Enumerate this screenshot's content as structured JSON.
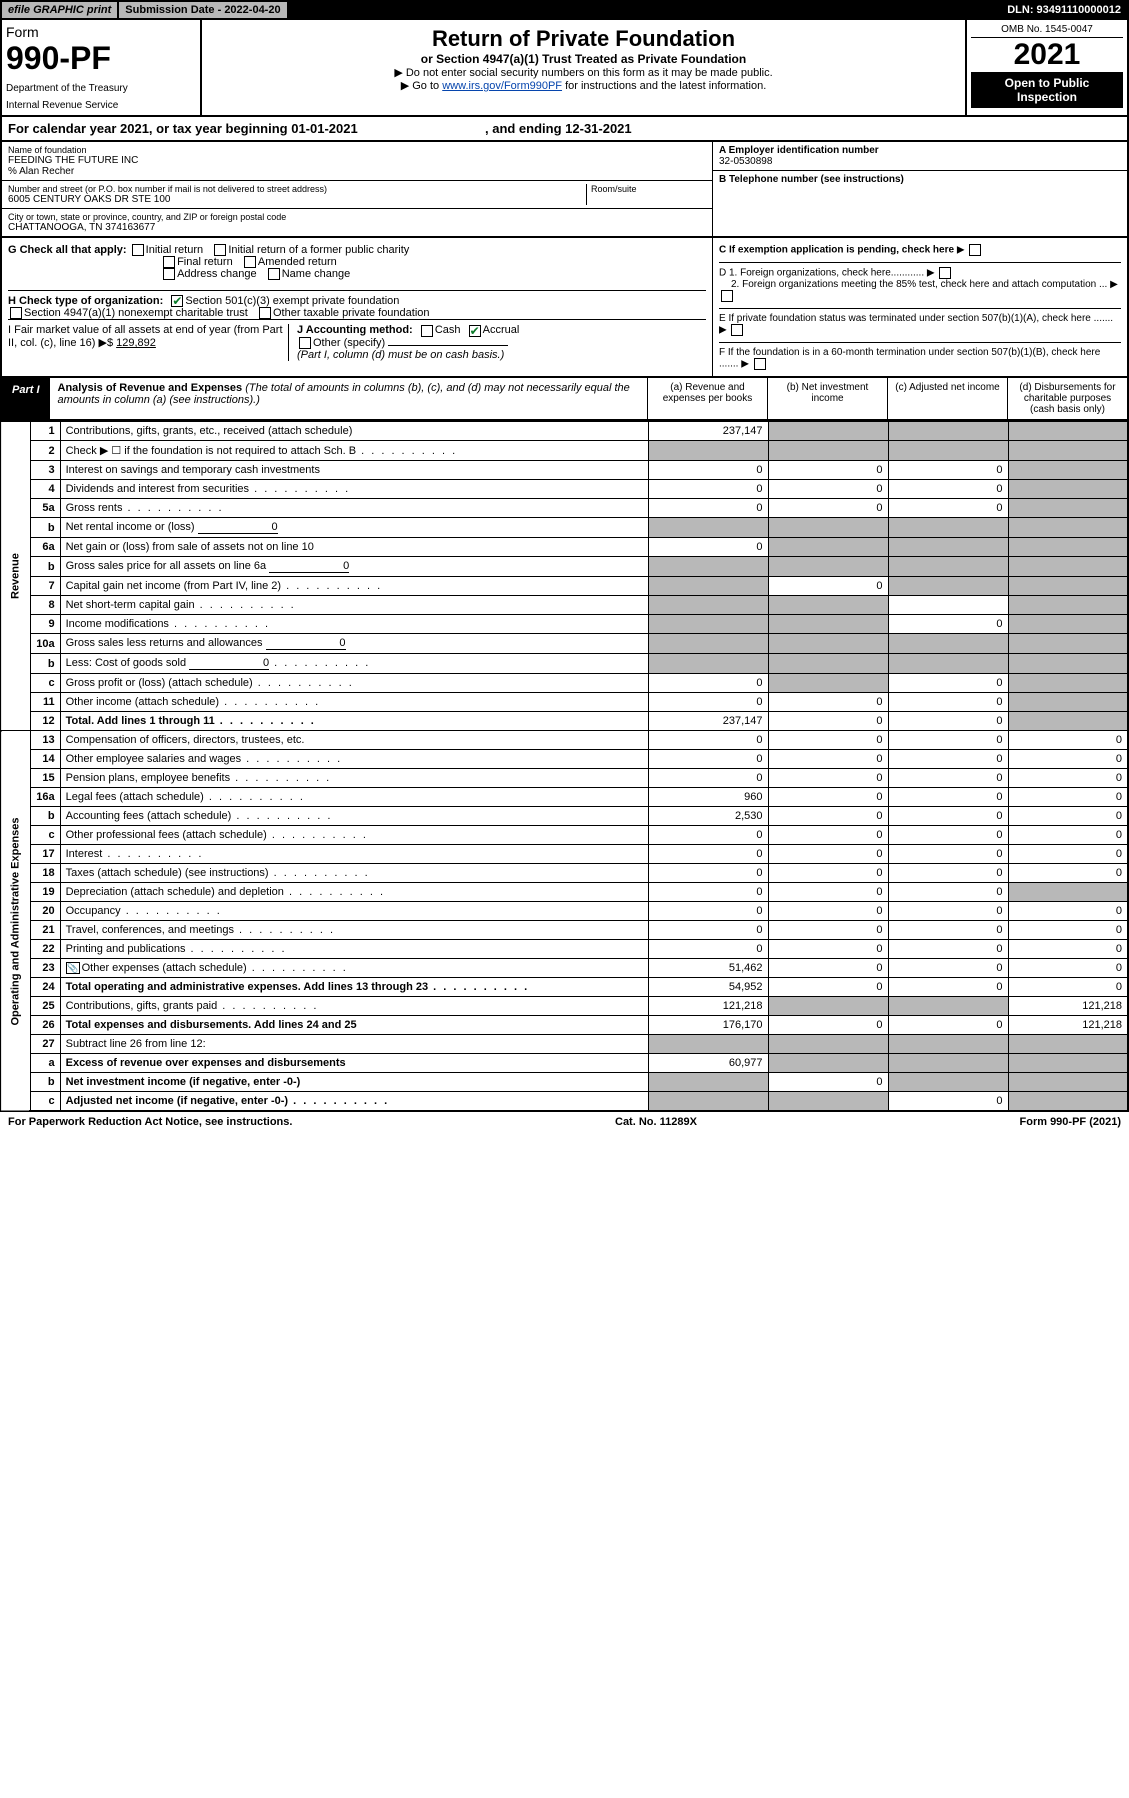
{
  "top": {
    "efile": "efile GRAPHIC print",
    "submission": "Submission Date - 2022-04-20",
    "dln": "DLN: 93491110000012"
  },
  "header": {
    "form_label": "Form",
    "form_no": "990-PF",
    "dept": "Department of the Treasury",
    "irs": "Internal Revenue Service",
    "title": "Return of Private Foundation",
    "subtitle": "or Section 4947(a)(1) Trust Treated as Private Foundation",
    "note1": "▶ Do not enter social security numbers on this form as it may be made public.",
    "note2_pre": "▶ Go to ",
    "note2_link": "www.irs.gov/Form990PF",
    "note2_post": " for instructions and the latest information.",
    "omb": "OMB No. 1545-0047",
    "year": "2021",
    "open": "Open to Public Inspection"
  },
  "cal_year": {
    "pre": "For calendar year 2021, or tax year beginning 01-01-2021",
    "mid": ", and ending 12-31-2021"
  },
  "info": {
    "name_label": "Name of foundation",
    "name": "FEEDING THE FUTURE INC",
    "care_of": "% Alan Recher",
    "addr_label": "Number and street (or P.O. box number if mail is not delivered to street address)",
    "addr": "6005 CENTURY OAKS DR STE 100",
    "room_label": "Room/suite",
    "city_label": "City or town, state or province, country, and ZIP or foreign postal code",
    "city": "CHATTANOOGA, TN  374163677",
    "a_label": "A Employer identification number",
    "a_val": "32-0530898",
    "b_label": "B Telephone number (see instructions)",
    "c_label": "C If exemption application is pending, check here",
    "d1": "D 1. Foreign organizations, check here............",
    "d2": "2. Foreign organizations meeting the 85% test, check here and attach computation ...",
    "e": "E  If private foundation status was terminated under section 507(b)(1)(A), check here .......",
    "f": "F  If the foundation is in a 60-month termination under section 507(b)(1)(B), check here .......",
    "g_label": "G Check all that apply:",
    "g_opts": [
      "Initial return",
      "Initial return of a former public charity",
      "Final return",
      "Amended return",
      "Address change",
      "Name change"
    ],
    "h_label": "H Check type of organization:",
    "h1": "Section 501(c)(3) exempt private foundation",
    "h2": "Section 4947(a)(1) nonexempt charitable trust",
    "h3": "Other taxable private foundation",
    "i_label": "I Fair market value of all assets at end of year (from Part II, col. (c), line 16)",
    "i_val": "129,892",
    "j_label": "J Accounting method:",
    "j_cash": "Cash",
    "j_accrual": "Accrual",
    "j_other": "Other (specify)",
    "j_note": "(Part I, column (d) must be on cash basis.)"
  },
  "part1": {
    "label": "Part I",
    "title": "Analysis of Revenue and Expenses",
    "note": "(The total of amounts in columns (b), (c), and (d) may not necessarily equal the amounts in column (a) (see instructions).)",
    "col_a": "(a) Revenue and expenses per books",
    "col_b": "(b) Net investment income",
    "col_c": "(c) Adjusted net income",
    "col_d": "(d) Disbursements for charitable purposes (cash basis only)"
  },
  "sections": {
    "revenue": "Revenue",
    "expenses": "Operating and Administrative Expenses"
  },
  "rows": [
    {
      "n": "1",
      "d": "Contributions, gifts, grants, etc., received (attach schedule)",
      "a": "237,147",
      "b": "shaded",
      "c": "shaded",
      "e": "shaded"
    },
    {
      "n": "2",
      "d": "Check ▶ ☐ if the foundation is not required to attach Sch. B",
      "dots": true,
      "a": "shaded",
      "b": "shaded",
      "c": "shaded",
      "e": "shaded"
    },
    {
      "n": "3",
      "d": "Interest on savings and temporary cash investments",
      "a": "0",
      "b": "0",
      "c": "0",
      "e": "shaded"
    },
    {
      "n": "4",
      "d": "Dividends and interest from securities",
      "dots": true,
      "a": "0",
      "b": "0",
      "c": "0",
      "e": "shaded"
    },
    {
      "n": "5a",
      "d": "Gross rents",
      "dots": true,
      "a": "0",
      "b": "0",
      "c": "0",
      "e": "shaded"
    },
    {
      "n": "b",
      "d": "Net rental income or (loss)",
      "inline": "0",
      "a": "shaded",
      "b": "shaded",
      "c": "shaded",
      "e": "shaded"
    },
    {
      "n": "6a",
      "d": "Net gain or (loss) from sale of assets not on line 10",
      "a": "0",
      "b": "shaded",
      "c": "shaded",
      "e": "shaded"
    },
    {
      "n": "b",
      "d": "Gross sales price for all assets on line 6a",
      "inline": "0",
      "a": "shaded",
      "b": "shaded",
      "c": "shaded",
      "e": "shaded"
    },
    {
      "n": "7",
      "d": "Capital gain net income (from Part IV, line 2)",
      "dots": true,
      "a": "shaded",
      "b": "0",
      "c": "shaded",
      "e": "shaded"
    },
    {
      "n": "8",
      "d": "Net short-term capital gain",
      "dots": true,
      "a": "shaded",
      "b": "shaded",
      "c": "",
      "e": "shaded"
    },
    {
      "n": "9",
      "d": "Income modifications",
      "dots": true,
      "a": "shaded",
      "b": "shaded",
      "c": "0",
      "e": "shaded"
    },
    {
      "n": "10a",
      "d": "Gross sales less returns and allowances",
      "inline": "0",
      "a": "shaded",
      "b": "shaded",
      "c": "shaded",
      "e": "shaded"
    },
    {
      "n": "b",
      "d": "Less: Cost of goods sold",
      "dots": true,
      "inline": "0",
      "a": "shaded",
      "b": "shaded",
      "c": "shaded",
      "e": "shaded"
    },
    {
      "n": "c",
      "d": "Gross profit or (loss) (attach schedule)",
      "dots": true,
      "a": "0",
      "b": "shaded",
      "c": "0",
      "e": "shaded"
    },
    {
      "n": "11",
      "d": "Other income (attach schedule)",
      "dots": true,
      "a": "0",
      "b": "0",
      "c": "0",
      "e": "shaded"
    },
    {
      "n": "12",
      "d": "Total. Add lines 1 through 11",
      "dots": true,
      "bold": true,
      "a": "237,147",
      "b": "0",
      "c": "0",
      "e": "shaded"
    },
    {
      "n": "13",
      "d": "Compensation of officers, directors, trustees, etc.",
      "a": "0",
      "b": "0",
      "c": "0",
      "e": "0",
      "sec": "exp"
    },
    {
      "n": "14",
      "d": "Other employee salaries and wages",
      "dots": true,
      "a": "0",
      "b": "0",
      "c": "0",
      "e": "0"
    },
    {
      "n": "15",
      "d": "Pension plans, employee benefits",
      "dots": true,
      "a": "0",
      "b": "0",
      "c": "0",
      "e": "0"
    },
    {
      "n": "16a",
      "d": "Legal fees (attach schedule)",
      "dots": true,
      "a": "960",
      "b": "0",
      "c": "0",
      "e": "0"
    },
    {
      "n": "b",
      "d": "Accounting fees (attach schedule)",
      "dots": true,
      "a": "2,530",
      "b": "0",
      "c": "0",
      "e": "0"
    },
    {
      "n": "c",
      "d": "Other professional fees (attach schedule)",
      "dots": true,
      "a": "0",
      "b": "0",
      "c": "0",
      "e": "0"
    },
    {
      "n": "17",
      "d": "Interest",
      "dots": true,
      "a": "0",
      "b": "0",
      "c": "0",
      "e": "0"
    },
    {
      "n": "18",
      "d": "Taxes (attach schedule) (see instructions)",
      "dots": true,
      "a": "0",
      "b": "0",
      "c": "0",
      "e": "0"
    },
    {
      "n": "19",
      "d": "Depreciation (attach schedule) and depletion",
      "dots": true,
      "a": "0",
      "b": "0",
      "c": "0",
      "e": "shaded"
    },
    {
      "n": "20",
      "d": "Occupancy",
      "dots": true,
      "a": "0",
      "b": "0",
      "c": "0",
      "e": "0"
    },
    {
      "n": "21",
      "d": "Travel, conferences, and meetings",
      "dots": true,
      "a": "0",
      "b": "0",
      "c": "0",
      "e": "0"
    },
    {
      "n": "22",
      "d": "Printing and publications",
      "dots": true,
      "a": "0",
      "b": "0",
      "c": "0",
      "e": "0"
    },
    {
      "n": "23",
      "d": "Other expenses (attach schedule)",
      "dots": true,
      "icon": true,
      "a": "51,462",
      "b": "0",
      "c": "0",
      "e": "0"
    },
    {
      "n": "24",
      "d": "Total operating and administrative expenses. Add lines 13 through 23",
      "dots": true,
      "bold": true,
      "a": "54,952",
      "b": "0",
      "c": "0",
      "e": "0"
    },
    {
      "n": "25",
      "d": "Contributions, gifts, grants paid",
      "dots": true,
      "a": "121,218",
      "b": "shaded",
      "c": "shaded",
      "e": "121,218"
    },
    {
      "n": "26",
      "d": "Total expenses and disbursements. Add lines 24 and 25",
      "bold": true,
      "a": "176,170",
      "b": "0",
      "c": "0",
      "e": "121,218"
    },
    {
      "n": "27",
      "d": "Subtract line 26 from line 12:",
      "a": "shaded",
      "b": "shaded",
      "c": "shaded",
      "e": "shaded"
    },
    {
      "n": "a",
      "d": "Excess of revenue over expenses and disbursements",
      "bold": true,
      "a": "60,977",
      "b": "shaded",
      "c": "shaded",
      "e": "shaded"
    },
    {
      "n": "b",
      "d": "Net investment income (if negative, enter -0-)",
      "bold": true,
      "a": "shaded",
      "b": "0",
      "c": "shaded",
      "e": "shaded"
    },
    {
      "n": "c",
      "d": "Adjusted net income (if negative, enter -0-)",
      "dots": true,
      "bold": true,
      "a": "shaded",
      "b": "shaded",
      "c": "0",
      "e": "shaded"
    }
  ],
  "footer": {
    "left": "For Paperwork Reduction Act Notice, see instructions.",
    "mid": "Cat. No. 11289X",
    "right": "Form 990-PF (2021)"
  }
}
